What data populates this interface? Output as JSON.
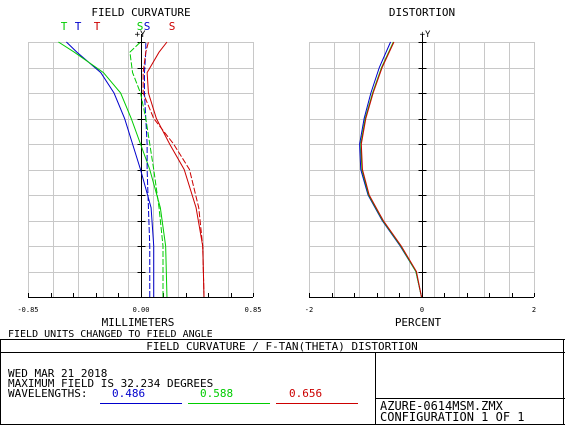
{
  "report": {
    "main_title": "FIELD CURVATURE / F-TAN(THETA) DISTORTION",
    "date": "WED MAR 21 2018",
    "max_field": "MAXIMUM FIELD IS 32.234 DEGREES",
    "wavelengths_label": "WAVELENGTHS:",
    "wavelengths": [
      {
        "value": "0.486",
        "color": "#0000cc"
      },
      {
        "value": "0.588",
        "color": "#00cc00"
      },
      {
        "value": "0.656",
        "color": "#cc0000"
      }
    ],
    "file_name": "AZURE-0614MSM.ZMX",
    "configuration": "CONFIGURATION 1 OF 1"
  },
  "chart_data": [
    {
      "type": "line",
      "title": "FIELD CURVATURE",
      "xlabel": "MILLIMETERS",
      "ylabel": "+Y",
      "note": "FIELD UNITS CHANGED TO FIELD ANGLE",
      "x_ticks": [
        "-0.85",
        "0.00",
        "0.85"
      ],
      "xlim": [
        -0.85,
        0.85
      ],
      "ylim": [
        0,
        1
      ],
      "grid": true,
      "legend": [
        {
          "label": "T",
          "color": "#00cc00"
        },
        {
          "label": "T",
          "color": "#0000cc"
        },
        {
          "label": "T",
          "color": "#cc0000"
        },
        {
          "label": "S",
          "color": "#00cc00"
        },
        {
          "label": "S",
          "color": "#0000cc"
        },
        {
          "label": "S",
          "color": "#cc0000"
        }
      ],
      "series": [
        {
          "kind": "T",
          "wavelength": 0.486,
          "color": "#0000cc",
          "points": [
            [
              0.1,
              0
            ],
            [
              0.1,
              0.2
            ],
            [
              0.08,
              0.35
            ],
            [
              0.0,
              0.5
            ],
            [
              -0.06,
              0.6
            ],
            [
              -0.12,
              0.7
            ],
            [
              -0.2,
              0.8
            ],
            [
              -0.3,
              0.88
            ],
            [
              -0.48,
              0.96
            ],
            [
              -0.56,
              1.0
            ]
          ]
        },
        {
          "kind": "T",
          "wavelength": 0.588,
          "color": "#00cc00",
          "points": [
            [
              0.2,
              0
            ],
            [
              0.19,
              0.2
            ],
            [
              0.15,
              0.35
            ],
            [
              0.07,
              0.5
            ],
            [
              0.0,
              0.6
            ],
            [
              -0.07,
              0.7
            ],
            [
              -0.15,
              0.8
            ],
            [
              -0.28,
              0.88
            ],
            [
              -0.5,
              0.96
            ],
            [
              -0.62,
              1.0
            ]
          ]
        },
        {
          "kind": "T",
          "wavelength": 0.656,
          "color": "#cc0000",
          "points": [
            [
              0.48,
              0
            ],
            [
              0.47,
              0.2
            ],
            [
              0.42,
              0.35
            ],
            [
              0.33,
              0.5
            ],
            [
              0.22,
              0.6
            ],
            [
              0.12,
              0.7
            ],
            [
              0.06,
              0.8
            ],
            [
              0.05,
              0.88
            ],
            [
              0.14,
              0.96
            ],
            [
              0.2,
              1.0
            ]
          ]
        },
        {
          "kind": "S",
          "wavelength": 0.486,
          "color": "#0000cc",
          "points": [
            [
              0.07,
              0
            ],
            [
              0.07,
              0.2
            ],
            [
              0.06,
              0.35
            ],
            [
              0.05,
              0.5
            ],
            [
              0.05,
              0.6
            ],
            [
              0.04,
              0.7
            ],
            [
              0.03,
              0.8
            ],
            [
              0.03,
              0.88
            ],
            [
              0.04,
              0.96
            ],
            [
              0.04,
              1.0
            ]
          ]
        },
        {
          "kind": "S",
          "wavelength": 0.588,
          "color": "#00cc00",
          "points": [
            [
              0.17,
              0
            ],
            [
              0.17,
              0.2
            ],
            [
              0.14,
              0.35
            ],
            [
              0.1,
              0.5
            ],
            [
              0.07,
              0.6
            ],
            [
              0.04,
              0.7
            ],
            [
              0.0,
              0.8
            ],
            [
              -0.06,
              0.88
            ],
            [
              -0.08,
              0.96
            ],
            [
              0.0,
              1.0
            ]
          ]
        },
        {
          "kind": "S",
          "wavelength": 0.656,
          "color": "#cc0000",
          "points": [
            [
              0.48,
              0
            ],
            [
              0.47,
              0.2
            ],
            [
              0.44,
              0.35
            ],
            [
              0.37,
              0.5
            ],
            [
              0.25,
              0.6
            ],
            [
              0.1,
              0.7
            ],
            [
              0.02,
              0.8
            ],
            [
              0.02,
              0.88
            ],
            [
              0.04,
              0.96
            ],
            [
              0.06,
              1.0
            ]
          ]
        }
      ]
    },
    {
      "type": "line",
      "title": "DISTORTION",
      "xlabel": "PERCENT",
      "ylabel": "+Y",
      "x_ticks": [
        "-2",
        "0",
        "2"
      ],
      "xlim": [
        -2,
        2
      ],
      "ylim": [
        0,
        1
      ],
      "grid": true,
      "series": [
        {
          "wavelength": 0.486,
          "color": "#0000cc",
          "points": [
            [
              0,
              0
            ],
            [
              -0.1,
              0.1
            ],
            [
              -0.38,
              0.2
            ],
            [
              -0.7,
              0.3
            ],
            [
              -0.95,
              0.4
            ],
            [
              -1.08,
              0.5
            ],
            [
              -1.1,
              0.6
            ],
            [
              -1.02,
              0.7
            ],
            [
              -0.9,
              0.8
            ],
            [
              -0.75,
              0.9
            ],
            [
              -0.55,
              1.0
            ]
          ]
        },
        {
          "wavelength": 0.588,
          "color": "#00cc00",
          "points": [
            [
              0,
              0
            ],
            [
              -0.1,
              0.1
            ],
            [
              -0.37,
              0.2
            ],
            [
              -0.69,
              0.3
            ],
            [
              -0.94,
              0.4
            ],
            [
              -1.06,
              0.5
            ],
            [
              -1.08,
              0.6
            ],
            [
              -1.0,
              0.7
            ],
            [
              -0.87,
              0.8
            ],
            [
              -0.71,
              0.9
            ],
            [
              -0.5,
              1.0
            ]
          ]
        },
        {
          "wavelength": 0.656,
          "color": "#cc0000",
          "points": [
            [
              0,
              0
            ],
            [
              -0.09,
              0.1
            ],
            [
              -0.36,
              0.2
            ],
            [
              -0.68,
              0.3
            ],
            [
              -0.93,
              0.4
            ],
            [
              -1.05,
              0.5
            ],
            [
              -1.07,
              0.6
            ],
            [
              -0.99,
              0.7
            ],
            [
              -0.86,
              0.8
            ],
            [
              -0.7,
              0.9
            ],
            [
              -0.49,
              1.0
            ]
          ]
        }
      ]
    }
  ]
}
